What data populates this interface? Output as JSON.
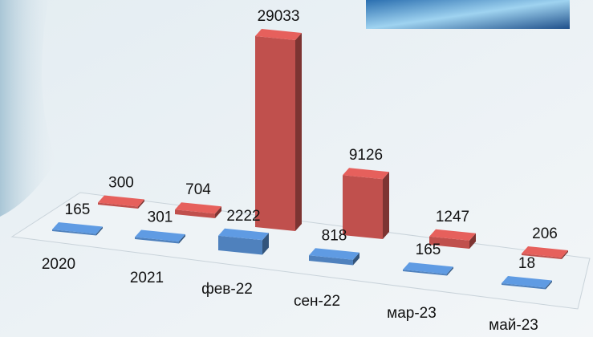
{
  "chart_data": {
    "type": "bar3d",
    "categories": [
      "2020",
      "2021",
      "фев-22",
      "сен-22",
      "мар-23",
      "май-23"
    ],
    "series": [
      {
        "color": "#4f81bd",
        "values": [
          165,
          301,
          2222,
          818,
          165,
          18
        ]
      },
      {
        "color": "#c0504d",
        "values": [
          300,
          704,
          29033,
          9126,
          1247,
          206
        ]
      }
    ]
  }
}
